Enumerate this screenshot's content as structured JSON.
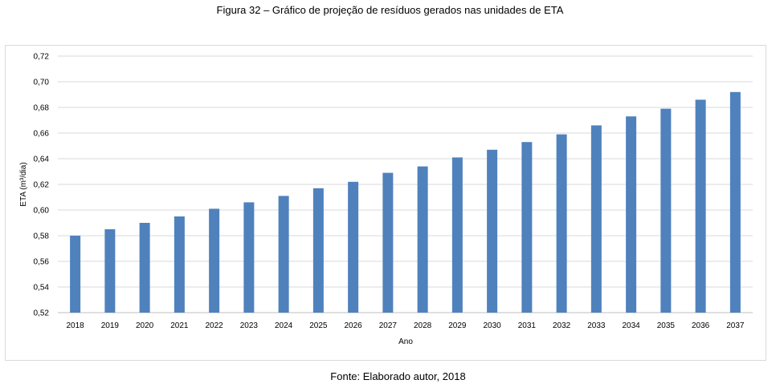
{
  "caption_top": "Figura 32 – Gráfico de projeção de resíduos gerados nas unidades de ETA",
  "caption_bottom": "Fonte: Elaborado autor, 2018",
  "chart_data": {
    "type": "bar",
    "title": "",
    "xlabel": "Ano",
    "ylabel": "ETA (m³/dia)",
    "ylim": [
      0.52,
      0.72
    ],
    "yticks": [
      "0,52",
      "0,54",
      "0,56",
      "0,58",
      "0,60",
      "0,62",
      "0,64",
      "0,66",
      "0,68",
      "0,70",
      "0,72"
    ],
    "grid": true,
    "legend": "none",
    "bar_color": "#4f81bd",
    "grid_color": "#d9d9d9",
    "categories": [
      "2018",
      "2019",
      "2020",
      "2021",
      "2022",
      "2023",
      "2024",
      "2025",
      "2026",
      "2027",
      "2028",
      "2029",
      "2030",
      "2031",
      "2032",
      "2033",
      "2034",
      "2035",
      "2036",
      "2037"
    ],
    "values": [
      0.58,
      0.585,
      0.59,
      0.595,
      0.601,
      0.606,
      0.611,
      0.617,
      0.622,
      0.629,
      0.634,
      0.641,
      0.647,
      0.653,
      0.659,
      0.666,
      0.673,
      0.679,
      0.686,
      0.692
    ]
  }
}
